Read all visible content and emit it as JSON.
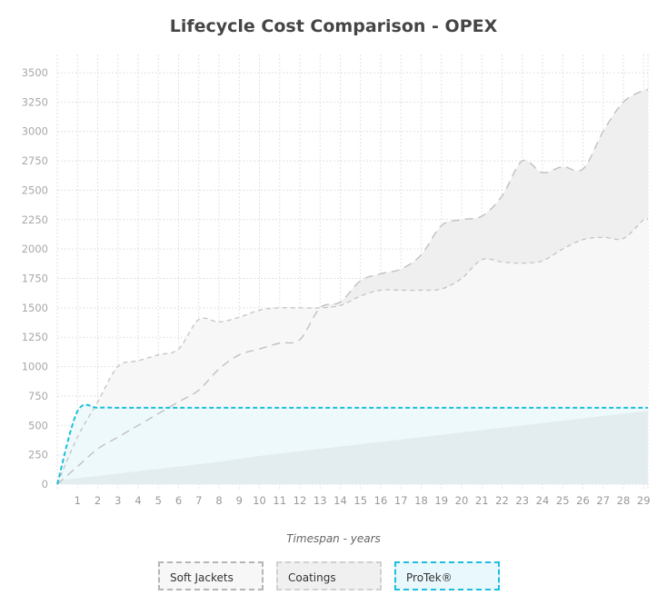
{
  "chart_data": {
    "type": "area",
    "title": "Lifecycle Cost Comparison - OPEX",
    "xlabel": "Timespan - years",
    "ylabel": "",
    "ylim": [
      0,
      3500
    ],
    "yticks": [
      "0",
      "250",
      "500",
      "750",
      "1000",
      "1250",
      "1500",
      "1750",
      "2000",
      "2250",
      "2500",
      "2750",
      "3000",
      "3250",
      "3500"
    ],
    "xticks": [
      "1",
      "2",
      "3",
      "4",
      "5",
      "6",
      "7",
      "8",
      "9",
      "10",
      "11",
      "12",
      "13",
      "14",
      "15",
      "16",
      "17",
      "18",
      "19",
      "20",
      "21",
      "22",
      "23",
      "24",
      "25",
      "26",
      "27",
      "28",
      "29"
    ],
    "grid": true,
    "legend_position": "bottom",
    "x": [
      0,
      1,
      2,
      3,
      4,
      5,
      6,
      7,
      8,
      9,
      10,
      11,
      12,
      13,
      14,
      15,
      16,
      17,
      18,
      19,
      20,
      21,
      22,
      23,
      24,
      25,
      26,
      27,
      28,
      29
    ],
    "series": [
      {
        "name": "Soft Jackets",
        "color": "#c4c4c4",
        "fill": "#f7f7f7",
        "values": [
          0,
          400,
          700,
          1000,
          1050,
          1100,
          1150,
          1400,
          1380,
          1420,
          1480,
          1500,
          1500,
          1500,
          1520,
          1600,
          1650,
          1650,
          1650,
          1660,
          1750,
          1910,
          1890,
          1880,
          1900,
          2000,
          2080,
          2100,
          2090,
          2250
        ]
      },
      {
        "name": "Coatings",
        "color": "#bdbdbd",
        "fill": "#efefef",
        "values": [
          0,
          150,
          300,
          400,
          500,
          600,
          700,
          800,
          980,
          1100,
          1150,
          1200,
          1230,
          1500,
          1550,
          1730,
          1790,
          1830,
          1950,
          2200,
          2250,
          2280,
          2450,
          2750,
          2650,
          2700,
          2680,
          3000,
          3250,
          3350
        ]
      },
      {
        "name": "ProTek®",
        "color": "#1bbfdc",
        "fill": "#eef9fc",
        "values": [
          0,
          620,
          650,
          650,
          650,
          650,
          650,
          650,
          650,
          650,
          650,
          650,
          650,
          650,
          650,
          650,
          650,
          650,
          650,
          650,
          650,
          650,
          650,
          650,
          650,
          650,
          650,
          650,
          650,
          650
        ]
      },
      {
        "name": "",
        "color": "#e3edf0",
        "fill": "#e3edf0",
        "values": [
          30,
          50,
          70,
          90,
          110,
          130,
          150,
          170,
          190,
          215,
          240,
          260,
          280,
          300,
          320,
          340,
          360,
          380,
          400,
          420,
          440,
          460,
          480,
          500,
          520,
          540,
          560,
          580,
          600,
          620
        ]
      }
    ]
  }
}
